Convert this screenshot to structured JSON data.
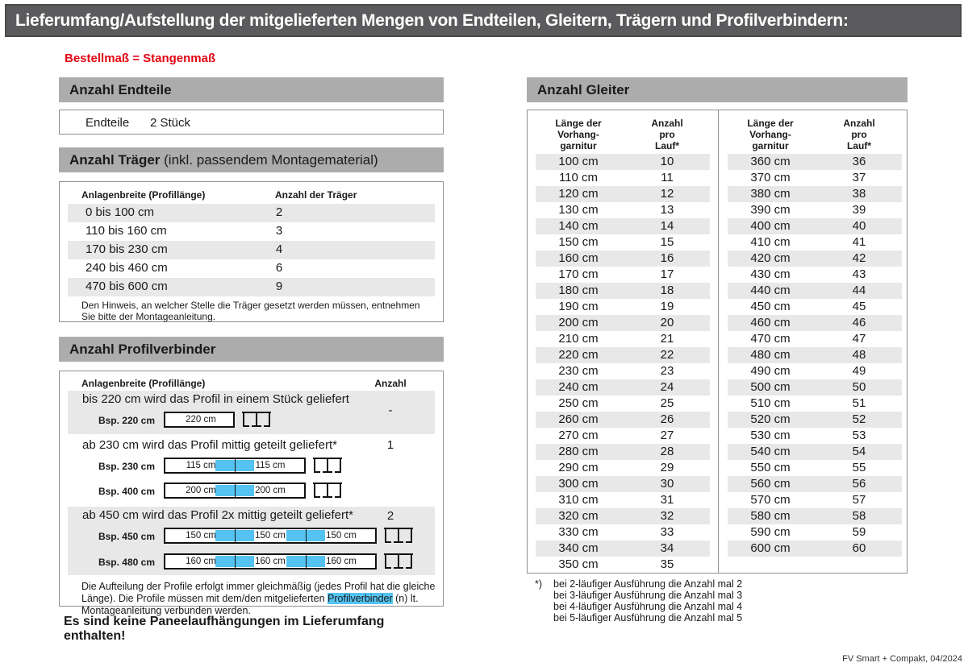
{
  "title": "Lieferumfang/Aufstellung der mitgelieferten Mengen von Endteilen, Gleitern, Trägern und Profilverbindern:",
  "subtitle": "Bestellmaß = Stangenmaß",
  "colors": {
    "titlebar_gray": "#5b5b5d",
    "section_header_gray": "#acacac",
    "row_alt_gray": "#e8e8e8",
    "accent_red": "#e30613",
    "highlight_blue": "#54c3f1"
  },
  "endteile": {
    "header": "Anzahl Endteile",
    "label": "Endteile",
    "value": "2 Stück"
  },
  "traeger": {
    "header_bold": "Anzahl Träger",
    "header_rest": " (inkl. passendem Montagematerial)",
    "col1": "Anlagenbreite (Profillänge)",
    "col2": "Anzahl der Träger",
    "rows": [
      {
        "range": "0 bis 100 cm",
        "count": "2"
      },
      {
        "range": "110 bis 160 cm",
        "count": "3"
      },
      {
        "range": "170 bis 230 cm",
        "count": "4"
      },
      {
        "range": "240 bis 460 cm",
        "count": "6"
      },
      {
        "range": "470 bis 600 cm",
        "count": "9"
      }
    ],
    "note": "Den Hinweis, an welcher Stelle die Träger gesetzt werden müssen, entnehmen Sie bitte der Montageanleitung."
  },
  "profilverbinder": {
    "header": "Anzahl Profilverbinder",
    "col1": "Anlagenbreite (Profillänge)",
    "col2": "Anzahl",
    "cases": [
      {
        "description": "bis 220 cm wird das Profil in einem Stück geliefert",
        "count": "-",
        "examples": [
          {
            "label": "Bsp. 220 cm",
            "segments": [
              "220 cm"
            ]
          }
        ]
      },
      {
        "description": "ab 230 cm wird das Profil mittig geteilt geliefert*",
        "count": "1",
        "examples": [
          {
            "label": "Bsp. 230 cm",
            "segments": [
              "115 cm",
              "115 cm"
            ]
          },
          {
            "label": "Bsp. 400 cm",
            "segments": [
              "200 cm",
              "200 cm"
            ]
          }
        ]
      },
      {
        "description": "ab 450 cm wird das Profil 2x mittig geteilt geliefert*",
        "count": "2",
        "examples": [
          {
            "label": "Bsp. 450 cm",
            "segments": [
              "150 cm",
              "150 cm",
              "150 cm"
            ]
          },
          {
            "label": "Bsp. 480 cm",
            "segments": [
              "160 cm",
              "160 cm",
              "160 cm"
            ]
          }
        ]
      }
    ],
    "note_part1": "Die Aufteilung der Profile erfolgt immer gleichmäßig (jedes Profil hat die gleiche Länge). Die Profile müssen mit dem/den mitgelieferten ",
    "note_highlight": "Profilverbinder",
    "note_part2": " (n) lt. Montageanleitung verbunden werden."
  },
  "no_paneel_note": "Es sind keine Paneelaufhängungen im Lieferumfang enthalten!",
  "gleiter": {
    "header": "Anzahl Gleiter",
    "col1_lines": [
      "Länge der",
      "Vorhang-",
      "garnitur"
    ],
    "col2_lines": [
      "Anzahl",
      "pro",
      "Lauf*"
    ],
    "table1": [
      [
        "100 cm",
        "10"
      ],
      [
        "110 cm",
        "11"
      ],
      [
        "120 cm",
        "12"
      ],
      [
        "130 cm",
        "13"
      ],
      [
        "140 cm",
        "14"
      ],
      [
        "150 cm",
        "15"
      ],
      [
        "160 cm",
        "16"
      ],
      [
        "170 cm",
        "17"
      ],
      [
        "180 cm",
        "18"
      ],
      [
        "190 cm",
        "19"
      ],
      [
        "200 cm",
        "20"
      ],
      [
        "210 cm",
        "21"
      ],
      [
        "220 cm",
        "22"
      ],
      [
        "230 cm",
        "23"
      ],
      [
        "240 cm",
        "24"
      ],
      [
        "250 cm",
        "25"
      ],
      [
        "260 cm",
        "26"
      ],
      [
        "270 cm",
        "27"
      ],
      [
        "280 cm",
        "28"
      ],
      [
        "290 cm",
        "29"
      ],
      [
        "300 cm",
        "30"
      ],
      [
        "310 cm",
        "31"
      ],
      [
        "320 cm",
        "32"
      ],
      [
        "330 cm",
        "33"
      ],
      [
        "340 cm",
        "34"
      ],
      [
        "350 cm",
        "35"
      ]
    ],
    "table2": [
      [
        "360 cm",
        "36"
      ],
      [
        "370 cm",
        "37"
      ],
      [
        "380 cm",
        "38"
      ],
      [
        "390 cm",
        "39"
      ],
      [
        "400 cm",
        "40"
      ],
      [
        "410 cm",
        "41"
      ],
      [
        "420 cm",
        "42"
      ],
      [
        "430 cm",
        "43"
      ],
      [
        "440 cm",
        "44"
      ],
      [
        "450 cm",
        "45"
      ],
      [
        "460 cm",
        "46"
      ],
      [
        "470 cm",
        "47"
      ],
      [
        "480 cm",
        "48"
      ],
      [
        "490 cm",
        "49"
      ],
      [
        "500 cm",
        "50"
      ],
      [
        "510 cm",
        "51"
      ],
      [
        "520 cm",
        "52"
      ],
      [
        "530 cm",
        "53"
      ],
      [
        "540 cm",
        "54"
      ],
      [
        "550 cm",
        "55"
      ],
      [
        "560 cm",
        "56"
      ],
      [
        "570 cm",
        "57"
      ],
      [
        "580 cm",
        "58"
      ],
      [
        "590 cm",
        "59"
      ],
      [
        "600 cm",
        "60"
      ]
    ],
    "footnote_marker": "*)",
    "footnotes": [
      "bei 2-läufiger Ausführung die Anzahl mal 2",
      "bei 3-läufiger Ausführung die Anzahl mal 3",
      "bei 4-läufiger Ausführung die Anzahl mal 4",
      "bei 5-läufiger Ausführung die Anzahl mal 5"
    ]
  },
  "footer": "FV Smart + Compakt, 04/2024"
}
